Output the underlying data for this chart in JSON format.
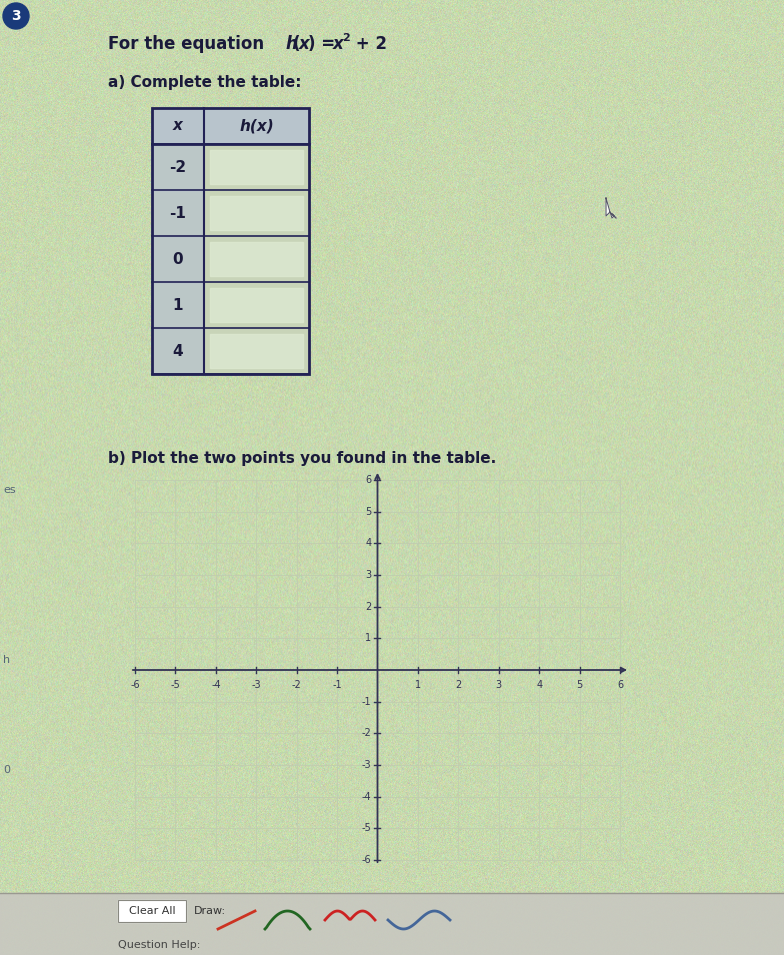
{
  "title_text": "For the equation ",
  "title_func_h": "h",
  "title_func_rest": "(x) = x",
  "title_func_sup": "2",
  "title_func_end": " + 2",
  "part_a_label": "a) Complete the table:",
  "part_b_label": "b) Plot the two points you found in the table.",
  "table_x_values": [
    "-2",
    "-1",
    "0",
    "1",
    "4"
  ],
  "table_header_x": "x",
  "table_header_hx": "h(x)",
  "graph_xlim": [
    -6,
    6
  ],
  "graph_ylim": [
    -6,
    6
  ],
  "bg_color_light": "#ccddb0",
  "bg_color_mid": "#c8d8a8",
  "table_bg": "#d8e8c0",
  "table_border_color": "#222255",
  "table_header_bg": "#c0c8d8",
  "table_x_cell_bg": "#bcc8d0",
  "table_hx_cell_bg": "#dce8d8",
  "table_inner_box": "#c8d8bc",
  "text_color": "#1a1a3a",
  "axis_color": "#333355",
  "grid_color": "#c0ccb0",
  "bottom_bar_bg": "#d0d0c8",
  "number_circle_color": "#1a3a7a",
  "number_circle_text": "3",
  "cursor_color": "#aabbcc"
}
